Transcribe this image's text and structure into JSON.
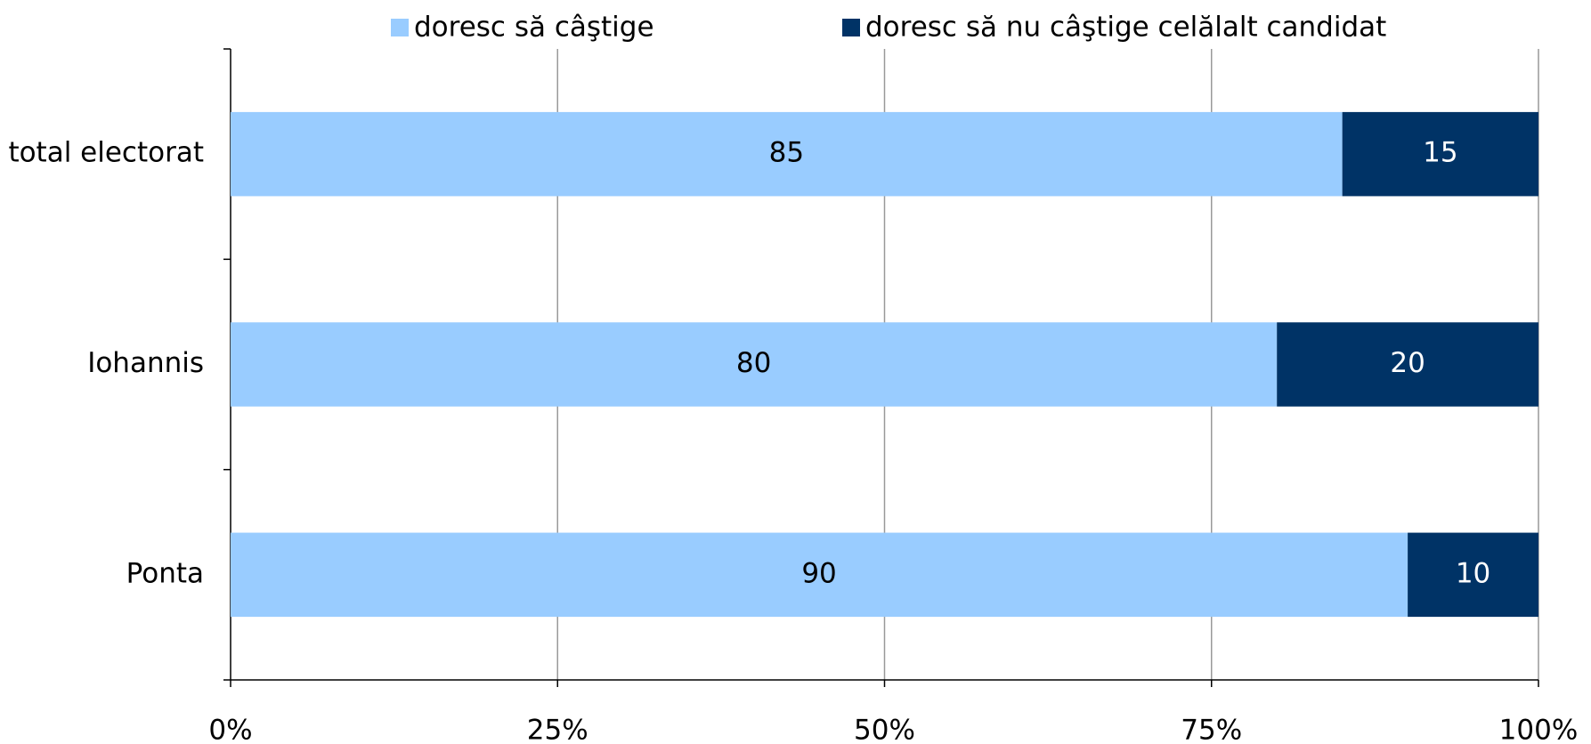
{
  "chart_data": {
    "type": "stacked_bar_horizontal",
    "categories": [
      "total electorat",
      "Iohannis",
      "Ponta"
    ],
    "series": [
      {
        "name": "doresc să câştige",
        "color": "#99ccff",
        "values": [
          85,
          80,
          90
        ]
      },
      {
        "name": "doresc să nu câştige celălalt candidat",
        "color": "#003366",
        "values": [
          15,
          20,
          10
        ]
      }
    ],
    "xlim": [
      0,
      100
    ],
    "xticks": [
      {
        "value": 0,
        "label": "0%"
      },
      {
        "value": 25,
        "label": "25%"
      },
      {
        "value": 50,
        "label": "50%"
      },
      {
        "value": 75,
        "label": "75%"
      },
      {
        "value": 100,
        "label": "100%"
      }
    ],
    "grid": true,
    "legend": "top"
  }
}
